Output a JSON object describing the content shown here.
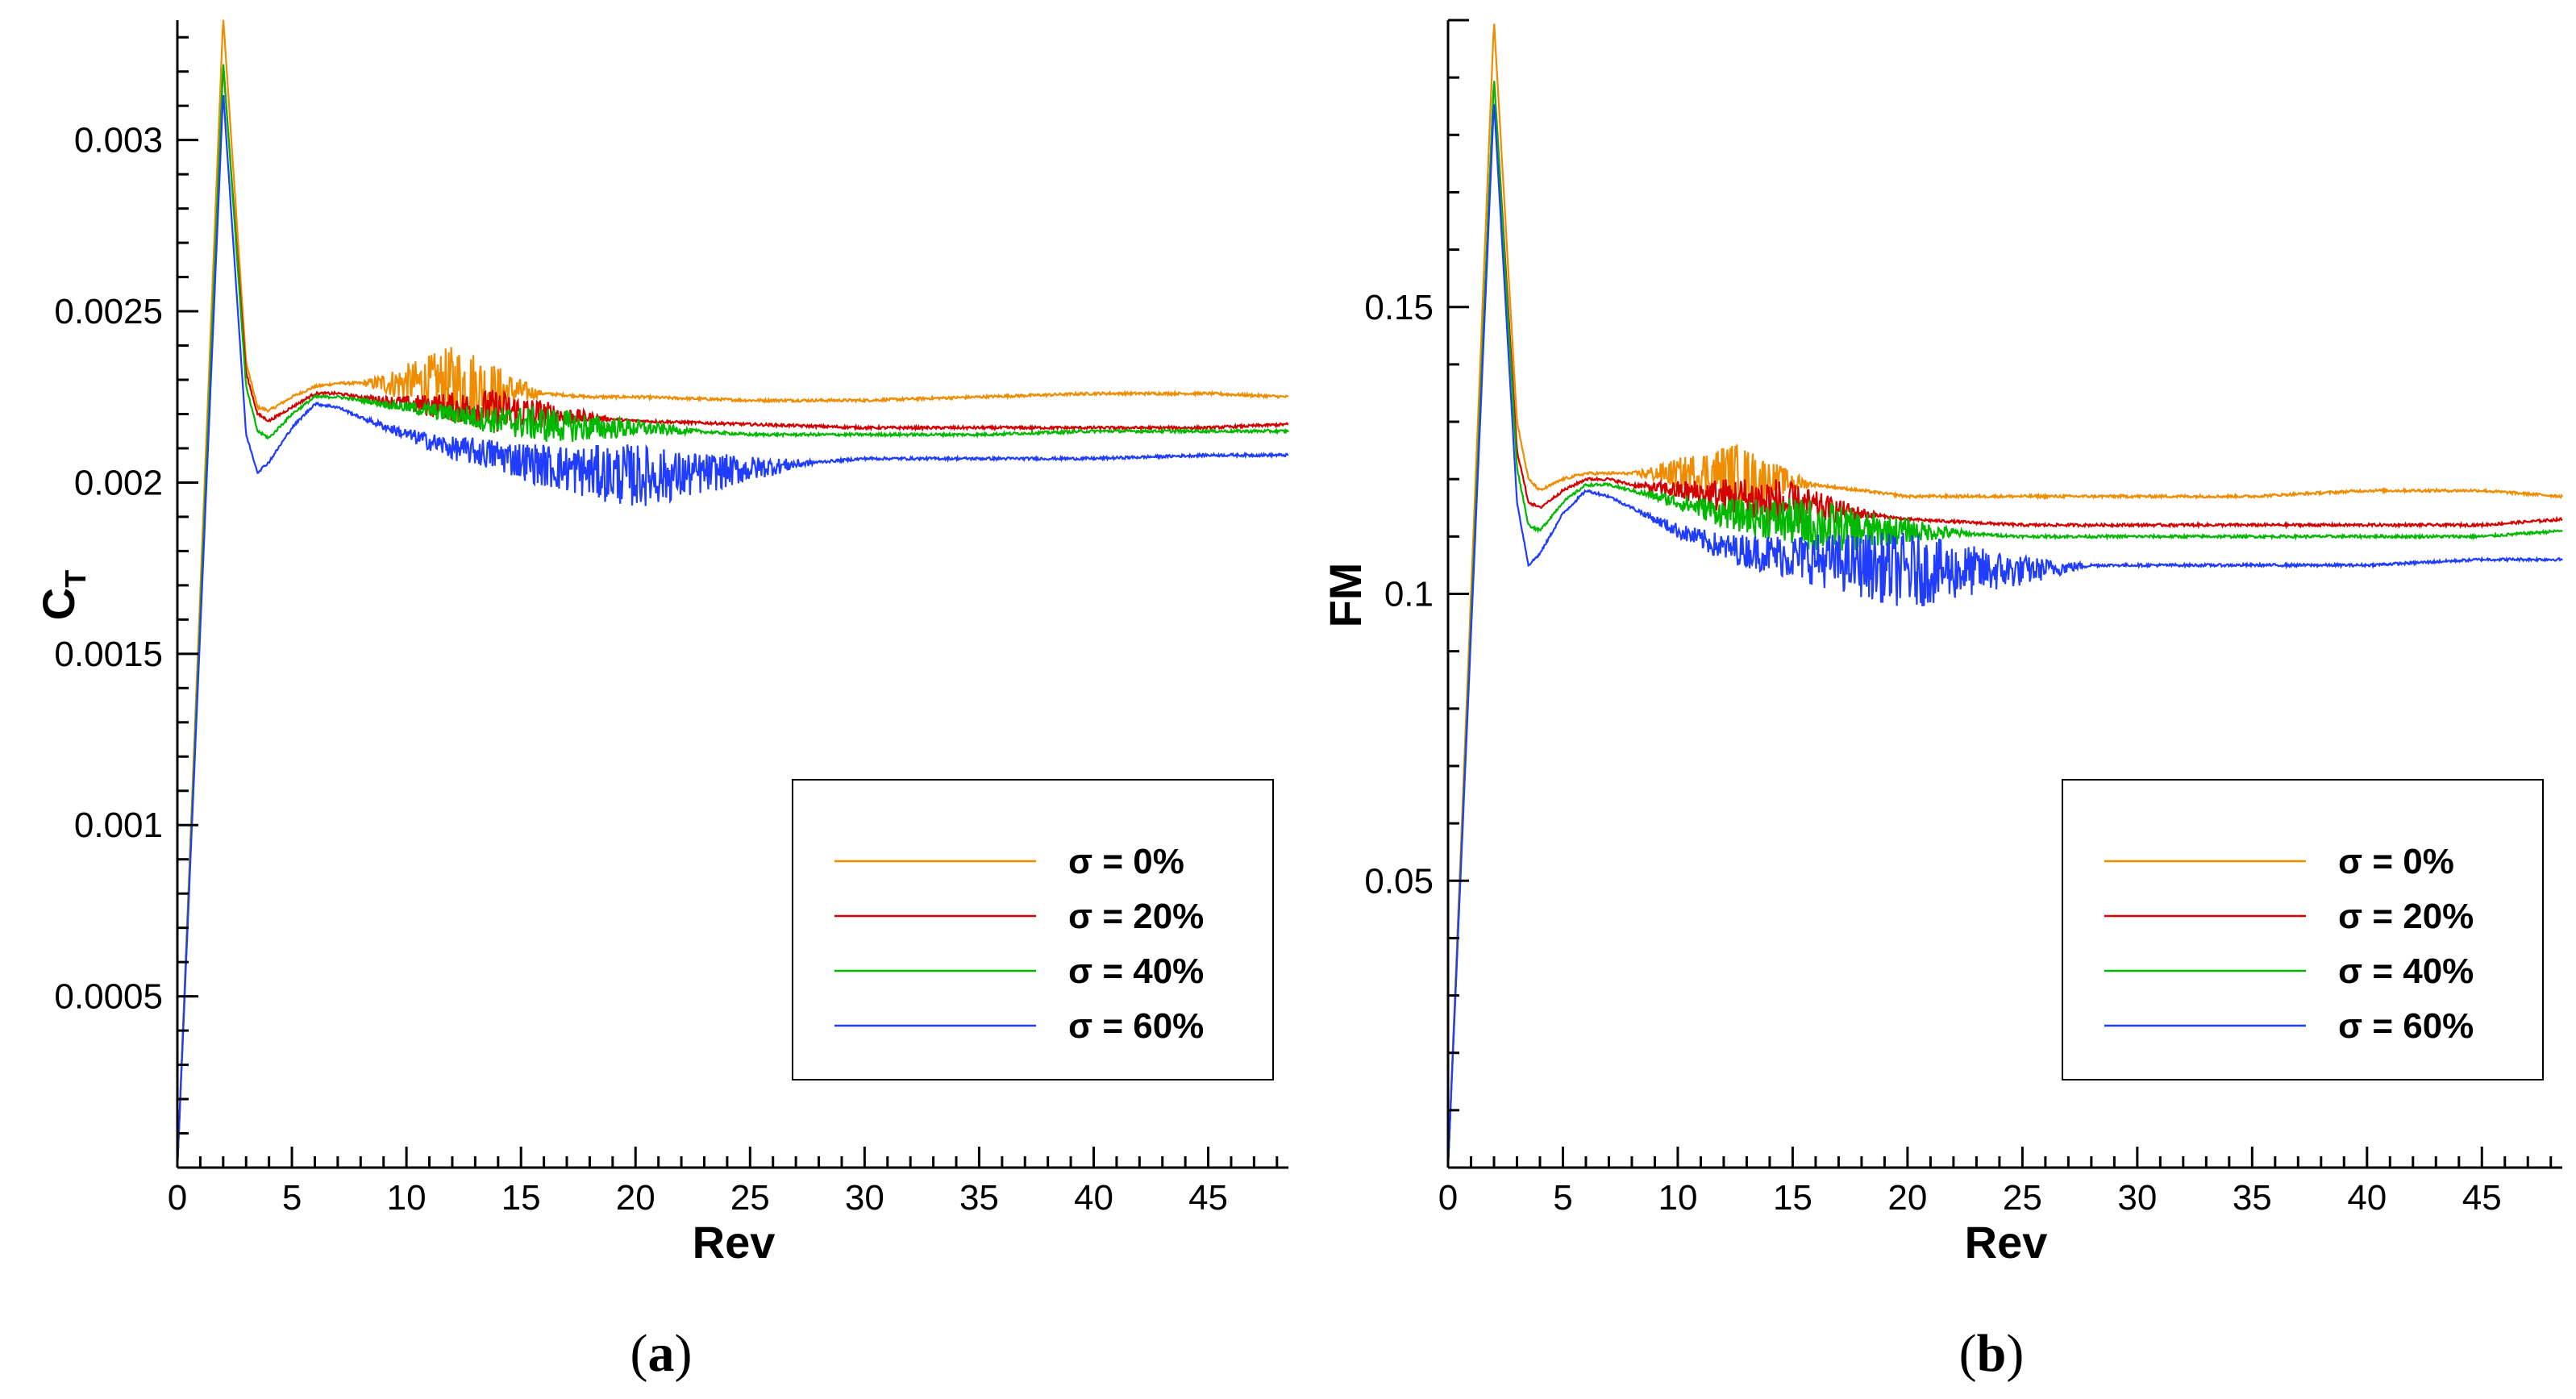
{
  "colors": {
    "orange": "#f08c00",
    "red": "#d40000",
    "green": "#00b800",
    "blue": "#1f3cff"
  },
  "chart_data": [
    {
      "type": "line",
      "caption_letter": "a",
      "xlabel": "Rev",
      "ylabel": "C",
      "ylabel_sub": "T",
      "xlim": [
        0,
        48.5
      ],
      "ylim": [
        0,
        0.00335
      ],
      "xticks": [
        "0",
        "5",
        "10",
        "15",
        "20",
        "25",
        "30",
        "35",
        "40",
        "45"
      ],
      "yticks": [
        "0.0005",
        "0.001",
        "0.0015",
        "0.002",
        "0.0025",
        "0.003"
      ],
      "legend_position": "lower-right",
      "series": [
        {
          "name": "σ = 0%",
          "color_key": "orange",
          "peak": 0.00336,
          "x": [
            0,
            2,
            3,
            3.5,
            4,
            5,
            6,
            7,
            8,
            10,
            12,
            14,
            16,
            18,
            20,
            25,
            30,
            35,
            40,
            45,
            48.5
          ],
          "y": [
            0,
            0.00336,
            0.00235,
            0.00222,
            0.00221,
            0.00225,
            0.00228,
            0.00229,
            0.00229,
            0.00229,
            0.00229,
            0.00227,
            0.00226,
            0.00225,
            0.00225,
            0.00224,
            0.00224,
            0.00225,
            0.00226,
            0.00226,
            0.00225
          ]
        },
        {
          "name": "σ = 20%",
          "color_key": "red",
          "peak": 0.00322,
          "x": [
            0,
            2,
            3,
            3.5,
            4,
            5,
            6,
            7,
            8,
            10,
            12,
            14,
            16,
            18,
            20,
            25,
            30,
            35,
            40,
            45,
            48.5
          ],
          "y": [
            0,
            0.00322,
            0.00232,
            0.0022,
            0.00218,
            0.00222,
            0.00226,
            0.00226,
            0.00225,
            0.00223,
            0.00222,
            0.00221,
            0.0022,
            0.00219,
            0.00218,
            0.00217,
            0.00216,
            0.00216,
            0.00216,
            0.00216,
            0.00217
          ]
        },
        {
          "name": "σ = 40%",
          "color_key": "green",
          "peak": 0.00323,
          "x": [
            0,
            2,
            3,
            3.5,
            4,
            5,
            6,
            7,
            8,
            10,
            12,
            14,
            16,
            18,
            20,
            25,
            30,
            35,
            40,
            45,
            48.5
          ],
          "y": [
            0,
            0.00323,
            0.00228,
            0.00215,
            0.00213,
            0.0022,
            0.00225,
            0.00225,
            0.00224,
            0.00222,
            0.0022,
            0.00218,
            0.00217,
            0.00216,
            0.00216,
            0.00214,
            0.00214,
            0.00214,
            0.00215,
            0.00215,
            0.00215
          ]
        },
        {
          "name": "σ = 60%",
          "color_key": "blue",
          "peak": 0.00314,
          "x": [
            0,
            2,
            3,
            3.5,
            4,
            5,
            6,
            7,
            8,
            10,
            12,
            14,
            16,
            18,
            20,
            22,
            25,
            28,
            30,
            35,
            40,
            45,
            48.5
          ],
          "y": [
            0,
            0.00314,
            0.00214,
            0.00203,
            0.00206,
            0.00216,
            0.00223,
            0.00222,
            0.00219,
            0.00214,
            0.0021,
            0.00208,
            0.00205,
            0.00203,
            0.00202,
            0.00202,
            0.00204,
            0.00206,
            0.00207,
            0.00207,
            0.00207,
            0.00208,
            0.00208
          ]
        }
      ]
    },
    {
      "type": "line",
      "caption_letter": "b",
      "xlabel": "Rev",
      "ylabel": "FM",
      "xlim": [
        0,
        48.5
      ],
      "ylim": [
        0,
        0.2
      ],
      "xticks": [
        "0",
        "5",
        "10",
        "15",
        "20",
        "25",
        "30",
        "35",
        "40",
        "45"
      ],
      "yticks": [
        "0.05",
        "0.1",
        "0.15"
      ],
      "legend_position": "lower-right",
      "series": [
        {
          "name": "σ = 0%",
          "color_key": "orange",
          "peak": 0.2,
          "x": [
            0,
            2,
            3,
            3.5,
            4,
            5,
            6,
            7,
            8,
            10,
            12,
            14,
            16,
            18,
            20,
            25,
            30,
            35,
            40,
            45,
            48.5
          ],
          "y": [
            0,
            0.2,
            0.13,
            0.12,
            0.118,
            0.12,
            0.121,
            0.121,
            0.121,
            0.121,
            0.121,
            0.12,
            0.119,
            0.118,
            0.117,
            0.117,
            0.117,
            0.117,
            0.118,
            0.118,
            0.117
          ]
        },
        {
          "name": "σ = 20%",
          "color_key": "red",
          "peak": 0.19,
          "x": [
            0,
            2,
            3,
            3.5,
            4,
            5,
            6,
            7,
            8,
            10,
            12,
            14,
            16,
            18,
            20,
            25,
            30,
            35,
            40,
            45,
            48.5
          ],
          "y": [
            0,
            0.19,
            0.125,
            0.116,
            0.115,
            0.118,
            0.12,
            0.12,
            0.119,
            0.118,
            0.117,
            0.116,
            0.115,
            0.114,
            0.113,
            0.112,
            0.112,
            0.112,
            0.112,
            0.112,
            0.113
          ]
        },
        {
          "name": "σ = 40%",
          "color_key": "green",
          "peak": 0.19,
          "x": [
            0,
            2,
            3,
            3.5,
            4,
            5,
            6,
            7,
            8,
            10,
            12,
            14,
            16,
            18,
            20,
            25,
            30,
            35,
            40,
            45,
            48.5
          ],
          "y": [
            0,
            0.19,
            0.122,
            0.112,
            0.111,
            0.116,
            0.119,
            0.119,
            0.118,
            0.116,
            0.114,
            0.113,
            0.112,
            0.111,
            0.111,
            0.11,
            0.11,
            0.11,
            0.11,
            0.11,
            0.111
          ]
        },
        {
          "name": "σ = 60%",
          "color_key": "blue",
          "peak": 0.186,
          "x": [
            0,
            2,
            3,
            3.5,
            4,
            5,
            6,
            7,
            8,
            10,
            12,
            14,
            16,
            18,
            20,
            22,
            25,
            28,
            30,
            35,
            40,
            45,
            48.5
          ],
          "y": [
            0,
            0.186,
            0.116,
            0.105,
            0.107,
            0.114,
            0.118,
            0.117,
            0.115,
            0.111,
            0.108,
            0.107,
            0.106,
            0.105,
            0.104,
            0.104,
            0.104,
            0.105,
            0.105,
            0.105,
            0.105,
            0.106,
            0.106
          ]
        }
      ]
    }
  ]
}
